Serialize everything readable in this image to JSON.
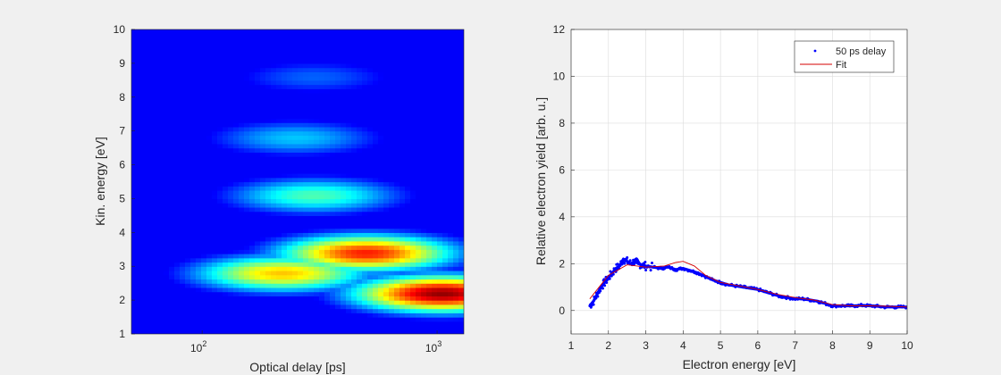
{
  "colors": {
    "background": "#f0f0f0",
    "axes_bg": "#ffffff",
    "axis": "#262626",
    "grid": "#dcdcdc",
    "data_series": "#0000ff",
    "fit_series": "#d40000"
  },
  "chart_data": [
    {
      "type": "heatmap",
      "colormap": "jet",
      "xlabel": "Optical delay [ps]",
      "ylabel": "Kin. energy [eV]",
      "xscale": "log",
      "xlim": [
        50,
        1300
      ],
      "ylim": [
        1,
        10
      ],
      "xticks": [
        {
          "value": 100,
          "base": "10",
          "exp": "2"
        },
        {
          "value": 1000,
          "base": "10",
          "exp": "3"
        }
      ],
      "yticks": [
        "1",
        "2",
        "3",
        "4",
        "5",
        "6",
        "7",
        "8",
        "9",
        "10"
      ],
      "features": [
        {
          "delay": 1050,
          "energy": 2.2,
          "intensity": 0.98
        },
        {
          "delay": 500,
          "energy": 3.4,
          "intensity": 0.85
        },
        {
          "delay": 220,
          "energy": 2.8,
          "intensity": 0.68
        },
        {
          "delay": 300,
          "energy": 5.1,
          "intensity": 0.45
        },
        {
          "delay": 250,
          "energy": 6.8,
          "intensity": 0.32
        },
        {
          "delay": 300,
          "energy": 8.6,
          "intensity": 0.22
        }
      ]
    },
    {
      "type": "line",
      "xlabel": "Electron energy [eV]",
      "ylabel": "Relative electron yield [arb. u.]",
      "xlim": [
        1,
        10
      ],
      "ylim": [
        -1,
        12
      ],
      "xticks": [
        "1",
        "2",
        "3",
        "4",
        "5",
        "6",
        "7",
        "8",
        "9",
        "10"
      ],
      "yticks": [
        "0",
        "2",
        "4",
        "6",
        "8",
        "10",
        "12"
      ],
      "grid": true,
      "legend_position": "top-right",
      "series": [
        {
          "name": "50 ps delay",
          "style": "points",
          "x": [
            1.5,
            1.6,
            1.7,
            1.8,
            1.9,
            2.0,
            2.1,
            2.2,
            2.3,
            2.4,
            2.5,
            2.6,
            2.7,
            2.8,
            2.9,
            3.0,
            3.2,
            3.4,
            3.6,
            3.8,
            4.0,
            4.2,
            4.4,
            4.6,
            4.8,
            5.0,
            5.2,
            5.4,
            5.6,
            5.8,
            6.0,
            6.2,
            6.4,
            6.6,
            6.8,
            7.0,
            7.2,
            7.4,
            7.6,
            7.8,
            8.0,
            8.2,
            8.4,
            8.6,
            8.8,
            9.0,
            9.2,
            9.4,
            9.6,
            9.8,
            10.0
          ],
          "y": [
            0.2,
            0.4,
            0.7,
            1.0,
            1.2,
            1.4,
            1.6,
            1.8,
            1.9,
            2.2,
            2.1,
            2.0,
            2.1,
            2.0,
            1.95,
            1.9,
            1.85,
            1.8,
            1.85,
            1.75,
            1.8,
            1.7,
            1.6,
            1.45,
            1.3,
            1.2,
            1.1,
            1.05,
            1.0,
            0.95,
            0.9,
            0.8,
            0.7,
            0.6,
            0.55,
            0.5,
            0.5,
            0.45,
            0.4,
            0.3,
            0.2,
            0.2,
            0.2,
            0.2,
            0.22,
            0.2,
            0.18,
            0.15,
            0.15,
            0.15,
            0.15
          ]
        },
        {
          "name": "Fit",
          "style": "line",
          "x": [
            1.5,
            2.0,
            2.5,
            3.0,
            3.5,
            3.8,
            4.0,
            4.3,
            4.6,
            5.0,
            5.5,
            6.0,
            6.5,
            7.0,
            7.5,
            8.0,
            8.5,
            9.0,
            9.5,
            10.0
          ],
          "y": [
            0.5,
            1.5,
            1.95,
            1.85,
            1.9,
            2.05,
            2.1,
            1.9,
            1.5,
            1.2,
            1.05,
            0.9,
            0.7,
            0.55,
            0.45,
            0.25,
            0.2,
            0.2,
            0.18,
            0.15
          ]
        }
      ]
    }
  ]
}
